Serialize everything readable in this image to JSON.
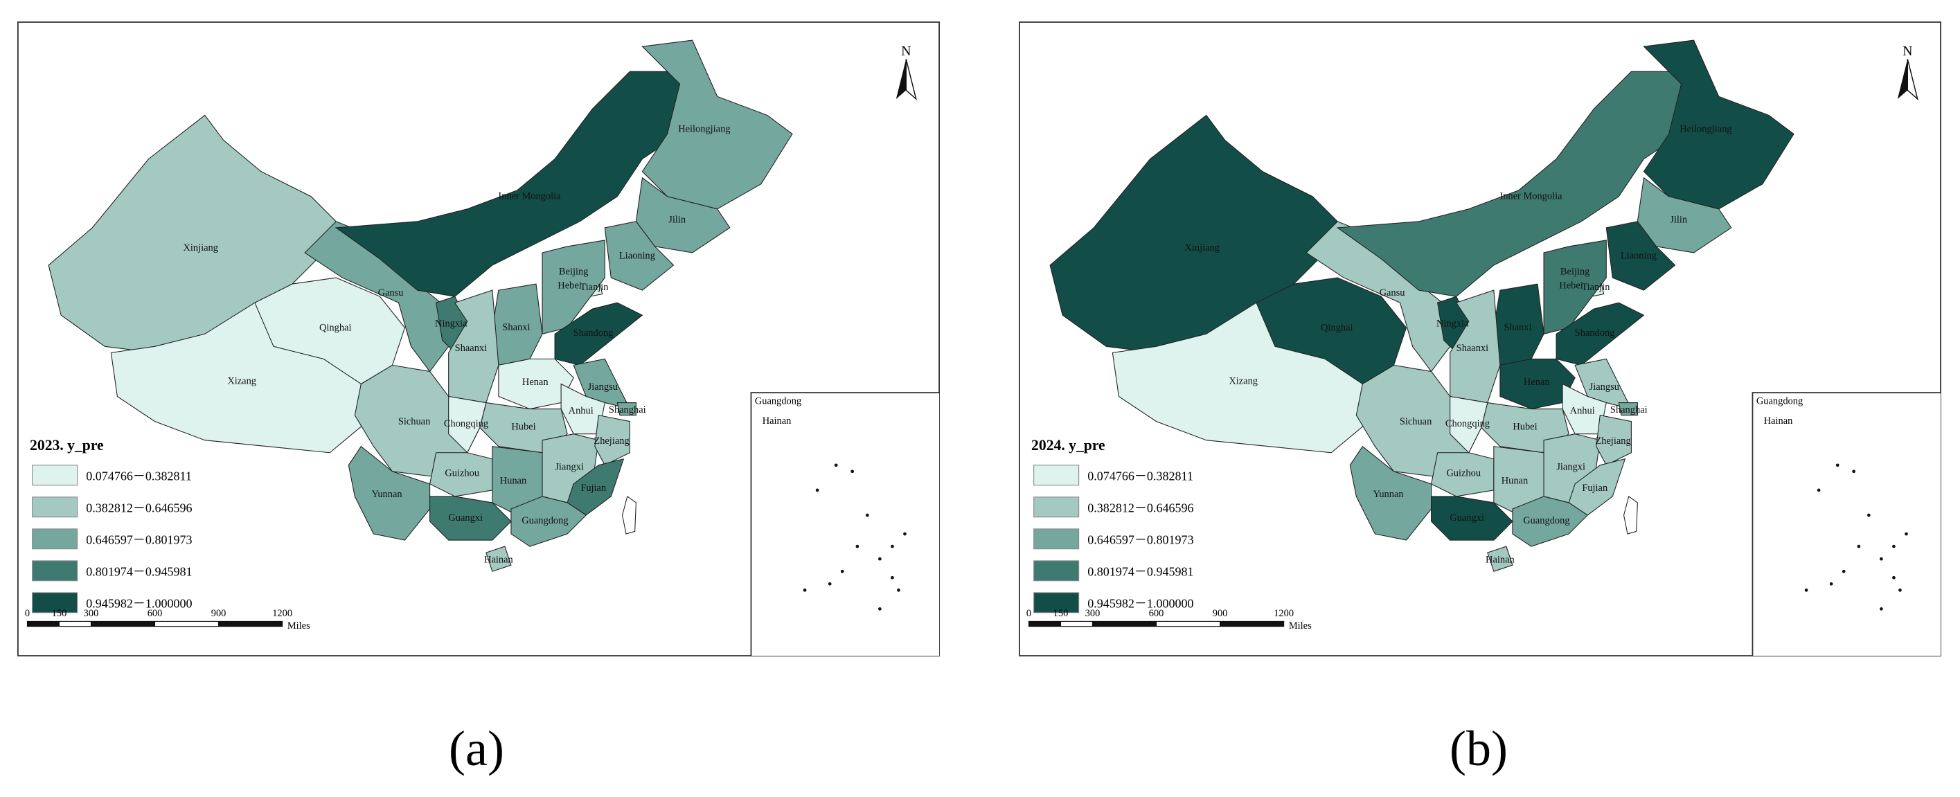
{
  "maps": [
    {
      "title": "2023. y_pre",
      "label": "(a)",
      "provinces": [
        {
          "name": "Xinjiang",
          "color": "#a3c9c1"
        },
        {
          "name": "Xizang",
          "color": "#dff3ee"
        },
        {
          "name": "Qinghai",
          "color": "#dff3ee"
        },
        {
          "name": "Gansu",
          "color": "#74a79e"
        },
        {
          "name": "Inner Mongolia",
          "color": "#124e47"
        },
        {
          "name": "Heilongjiang",
          "color": "#74a79e"
        },
        {
          "name": "Jilin",
          "color": "#74a79e"
        },
        {
          "name": "Liaoning",
          "color": "#74a79e"
        },
        {
          "name": "Beijing",
          "color": "#74a79e"
        },
        {
          "name": "Tianjin",
          "color": "#dff3ee"
        },
        {
          "name": "Hebei",
          "color": "#74a79e"
        },
        {
          "name": "Shanxi",
          "color": "#74a79e"
        },
        {
          "name": "Shandong",
          "color": "#124e47"
        },
        {
          "name": "Ningxia",
          "color": "#3f7a70"
        },
        {
          "name": "Shaanxi",
          "color": "#a3c9c1"
        },
        {
          "name": "Henan",
          "color": "#dff3ee"
        },
        {
          "name": "Jiangsu",
          "color": "#74a79e"
        },
        {
          "name": "Shanghai",
          "color": "#74a79e"
        },
        {
          "name": "Anhui",
          "color": "#dff3ee"
        },
        {
          "name": "Hubei",
          "color": "#a3c9c1"
        },
        {
          "name": "Sichuan",
          "color": "#a3c9c1"
        },
        {
          "name": "Chongqing",
          "color": "#dff3ee"
        },
        {
          "name": "Guizhou",
          "color": "#a3c9c1"
        },
        {
          "name": "Hunan",
          "color": "#74a79e"
        },
        {
          "name": "Jiangxi",
          "color": "#a3c9c1"
        },
        {
          "name": "Zhejiang",
          "color": "#a3c9c1"
        },
        {
          "name": "Fujian",
          "color": "#3f7a70"
        },
        {
          "name": "Yunnan",
          "color": "#74a79e"
        },
        {
          "name": "Guangxi",
          "color": "#3f7a70"
        },
        {
          "name": "Guangdong",
          "color": "#74a79e"
        },
        {
          "name": "Hainan",
          "color": "#a3c9c1"
        }
      ]
    },
    {
      "title": "2024. y_pre",
      "label": "(b)",
      "provinces": [
        {
          "name": "Xinjiang",
          "color": "#124e47"
        },
        {
          "name": "Xizang",
          "color": "#dff3ee"
        },
        {
          "name": "Qinghai",
          "color": "#124e47"
        },
        {
          "name": "Gansu",
          "color": "#a3c9c1"
        },
        {
          "name": "Inner Mongolia",
          "color": "#3f7a70"
        },
        {
          "name": "Heilongjiang",
          "color": "#124e47"
        },
        {
          "name": "Jilin",
          "color": "#74a79e"
        },
        {
          "name": "Liaoning",
          "color": "#124e47"
        },
        {
          "name": "Beijing",
          "color": "#74a79e"
        },
        {
          "name": "Tianjin",
          "color": "#dff3ee"
        },
        {
          "name": "Hebei",
          "color": "#3f7a70"
        },
        {
          "name": "Shanxi",
          "color": "#124e47"
        },
        {
          "name": "Shandong",
          "color": "#124e47"
        },
        {
          "name": "Ningxia",
          "color": "#124e47"
        },
        {
          "name": "Shaanxi",
          "color": "#a3c9c1"
        },
        {
          "name": "Henan",
          "color": "#124e47"
        },
        {
          "name": "Jiangsu",
          "color": "#a3c9c1"
        },
        {
          "name": "Shanghai",
          "color": "#74a79e"
        },
        {
          "name": "Anhui",
          "color": "#dff3ee"
        },
        {
          "name": "Hubei",
          "color": "#a3c9c1"
        },
        {
          "name": "Sichuan",
          "color": "#a3c9c1"
        },
        {
          "name": "Chongqing",
          "color": "#dff3ee"
        },
        {
          "name": "Guizhou",
          "color": "#a3c9c1"
        },
        {
          "name": "Hunan",
          "color": "#a3c9c1"
        },
        {
          "name": "Jiangxi",
          "color": "#a3c9c1"
        },
        {
          "name": "Zhejiang",
          "color": "#a3c9c1"
        },
        {
          "name": "Fujian",
          "color": "#a3c9c1"
        },
        {
          "name": "Yunnan",
          "color": "#74a79e"
        },
        {
          "name": "Guangxi",
          "color": "#124e47"
        },
        {
          "name": "Guangdong",
          "color": "#74a79e"
        },
        {
          "name": "Hainan",
          "color": "#a3c9c1"
        }
      ]
    }
  ],
  "legend": [
    {
      "range": "0.074766－0.382811",
      "color": "#dff3ee"
    },
    {
      "range": "0.382812－0.646596",
      "color": "#a3c9c1"
    },
    {
      "range": "0.646597－0.801973",
      "color": "#74a79e"
    },
    {
      "range": "0.801974－0.945981",
      "color": "#3f7a70"
    },
    {
      "range": "0.945982－1.000000",
      "color": "#124e47"
    }
  ],
  "scale": {
    "ticks": [
      0,
      150,
      300,
      600,
      900,
      1200
    ],
    "unit": "Miles"
  },
  "north": "N",
  "inset_labels": [
    "Guangdong",
    "Hainan"
  ]
}
